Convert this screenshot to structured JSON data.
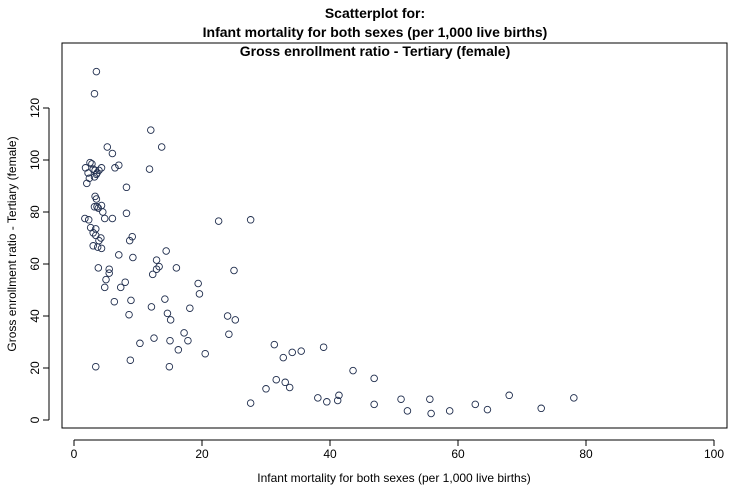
{
  "chart_data": {
    "type": "scatter",
    "title_lines": [
      "Scatterplot for:",
      "Infant mortality for both sexes (per 1,000 live births)",
      "Gross enrollment ratio - Tertiary (female)"
    ],
    "xlabel": "Infant mortality for both sexes (per 1,000 live births)",
    "ylabel": "Gross enrollment ratio - Tertiary (female)",
    "xlim": [
      0,
      100
    ],
    "ylim": [
      0,
      140
    ],
    "xticks": [
      0,
      20,
      40,
      60,
      80,
      100
    ],
    "yticks": [
      0,
      20,
      40,
      60,
      80,
      100,
      120
    ],
    "grid": false,
    "marker_color": "#1f2d4d",
    "points": [
      [
        3.5,
        134
      ],
      [
        3.2,
        125.5
      ],
      [
        1.8,
        97
      ],
      [
        2.2,
        95
      ],
      [
        2.5,
        99
      ],
      [
        2.8,
        98.5
      ],
      [
        3.0,
        96.5
      ],
      [
        3.3,
        96
      ],
      [
        3.6,
        95
      ],
      [
        3.9,
        96
      ],
      [
        4.3,
        97
      ],
      [
        2.0,
        91
      ],
      [
        2.4,
        93
      ],
      [
        3.2,
        93.5
      ],
      [
        3.5,
        94.5
      ],
      [
        5.2,
        105
      ],
      [
        6.0,
        102.5
      ],
      [
        6.4,
        97
      ],
      [
        7.0,
        98
      ],
      [
        12.0,
        111.5
      ],
      [
        13.7,
        105
      ],
      [
        11.8,
        96.5
      ],
      [
        1.7,
        77.5
      ],
      [
        2.3,
        77
      ],
      [
        2.6,
        74
      ],
      [
        3.0,
        72
      ],
      [
        3.2,
        82
      ],
      [
        3.6,
        82
      ],
      [
        3.3,
        86
      ],
      [
        3.5,
        85
      ],
      [
        3.8,
        81.5
      ],
      [
        4.3,
        82.5
      ],
      [
        4.5,
        80
      ],
      [
        4.8,
        77.5
      ],
      [
        3.4,
        73.5
      ],
      [
        3.9,
        69
      ],
      [
        4.2,
        70
      ],
      [
        3.0,
        67
      ],
      [
        3.7,
        66.5
      ],
      [
        4.3,
        66
      ],
      [
        3.4,
        71
      ],
      [
        6.0,
        77.5
      ],
      [
        8.2,
        79.5
      ],
      [
        8.2,
        89.5
      ],
      [
        8.7,
        69
      ],
      [
        9.1,
        70.5
      ],
      [
        7.0,
        63.5
      ],
      [
        9.2,
        62.5
      ],
      [
        3.8,
        58.5
      ],
      [
        5.5,
        58
      ],
      [
        5.5,
        56.5
      ],
      [
        5.0,
        54
      ],
      [
        4.8,
        51
      ],
      [
        8.0,
        53
      ],
      [
        7.3,
        51
      ],
      [
        6.3,
        45.5
      ],
      [
        8.9,
        46
      ],
      [
        8.6,
        40.5
      ],
      [
        10.3,
        29.5
      ],
      [
        12.5,
        31.5
      ],
      [
        8.8,
        23
      ],
      [
        3.4,
        20.5
      ],
      [
        12.3,
        56
      ],
      [
        12.9,
        58
      ],
      [
        13.3,
        59
      ],
      [
        12.9,
        61.5
      ],
      [
        14.4,
        65
      ],
      [
        16.0,
        58.5
      ],
      [
        14.2,
        46.5
      ],
      [
        12.1,
        43.5
      ],
      [
        14.6,
        41
      ],
      [
        15.1,
        38.5
      ],
      [
        16.3,
        27
      ],
      [
        17.2,
        33.5
      ],
      [
        17.8,
        30.5
      ],
      [
        15.0,
        30.5
      ],
      [
        14.9,
        20.5
      ],
      [
        18.1,
        43
      ],
      [
        19.4,
        52.5
      ],
      [
        19.6,
        48.5
      ],
      [
        20.5,
        25.5
      ],
      [
        22.6,
        76.5
      ],
      [
        27.6,
        77
      ],
      [
        25.0,
        57.5
      ],
      [
        24.0,
        40
      ],
      [
        25.2,
        38.5
      ],
      [
        24.2,
        33
      ],
      [
        27.6,
        6.5
      ],
      [
        30.0,
        12
      ],
      [
        31.3,
        29
      ],
      [
        31.6,
        15.5
      ],
      [
        32.7,
        24
      ],
      [
        34.1,
        26
      ],
      [
        33.0,
        14.5
      ],
      [
        33.7,
        12.5
      ],
      [
        35.5,
        26.5
      ],
      [
        38.1,
        8.5
      ],
      [
        39.0,
        28
      ],
      [
        39.5,
        7
      ],
      [
        41.2,
        7.5
      ],
      [
        41.4,
        9.5
      ],
      [
        43.6,
        19
      ],
      [
        46.9,
        16
      ],
      [
        46.9,
        6
      ],
      [
        51.1,
        8
      ],
      [
        52.1,
        3.5
      ],
      [
        55.6,
        8
      ],
      [
        55.8,
        2.5
      ],
      [
        58.7,
        3.5
      ],
      [
        62.7,
        6
      ],
      [
        64.6,
        4
      ],
      [
        68.0,
        9.5
      ],
      [
        73.0,
        4.5
      ],
      [
        78.1,
        8.5
      ]
    ]
  }
}
